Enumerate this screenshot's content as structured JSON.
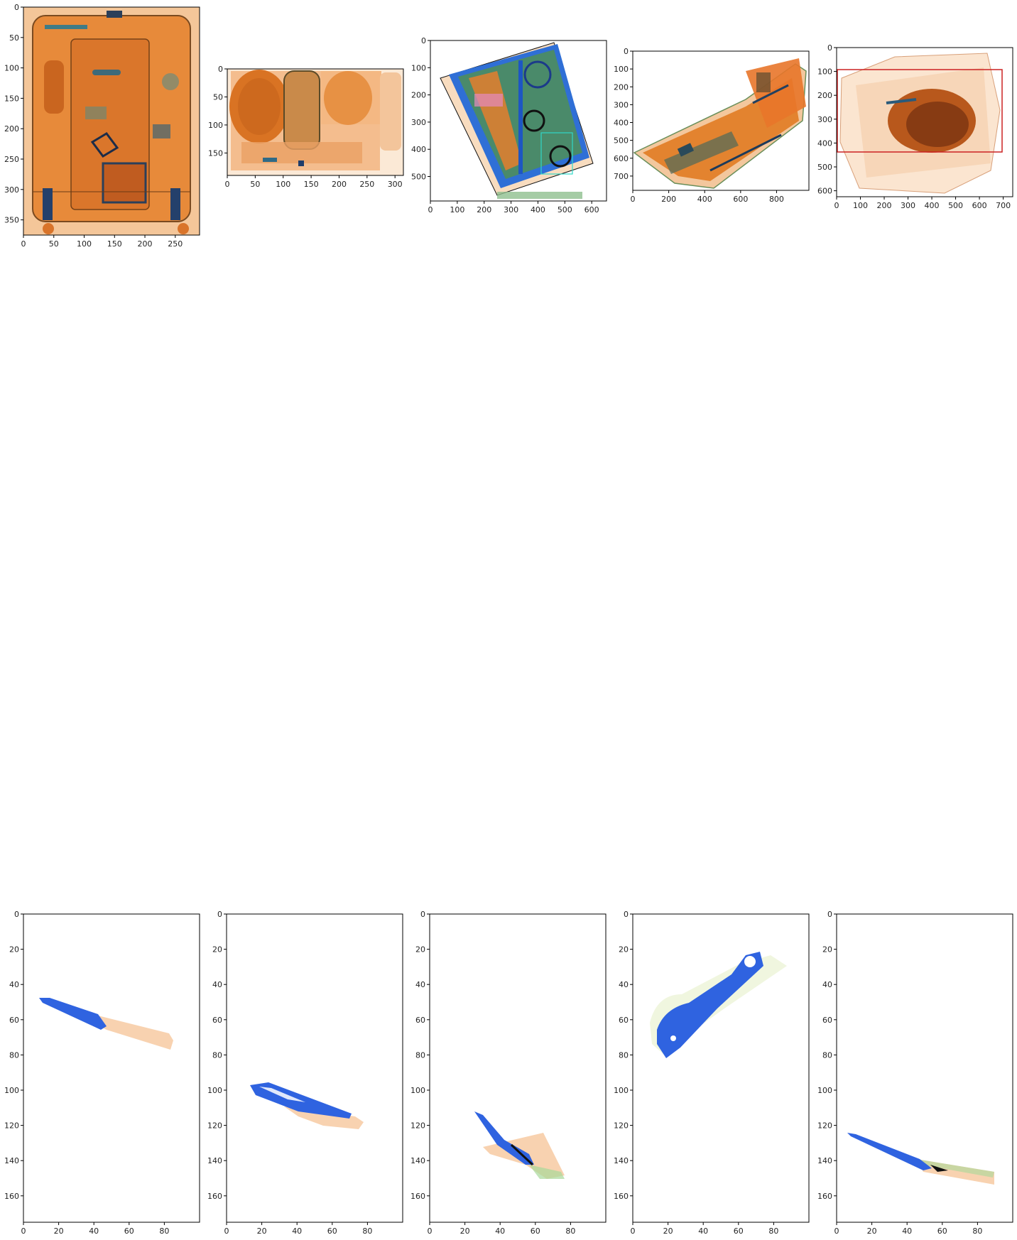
{
  "colors": {
    "bag_orange": "#e07a2a",
    "bag_light": "#f6c89a",
    "knife_blue": "#2f63e0",
    "handle_peach": "#f8d2b0",
    "highlight_red": "#cc2222",
    "highlight_cyan": "#30d8c8"
  },
  "panels": [
    {
      "name": "panel-1",
      "content": "xray-suitcase-upright",
      "xlim": [
        0,
        290
      ],
      "ylim": [
        375,
        0
      ],
      "xticks": [
        0,
        50,
        100,
        150,
        200,
        250
      ],
      "yticks": [
        0,
        50,
        100,
        150,
        200,
        250,
        300,
        350
      ]
    },
    {
      "name": "panel-2",
      "content": "xray-bag-with-rolls",
      "xlim": [
        0,
        315
      ],
      "ylim": [
        190,
        0
      ],
      "xticks": [
        0,
        50,
        100,
        150,
        200,
        250,
        300
      ],
      "yticks": [
        0,
        50,
        100,
        150
      ]
    },
    {
      "name": "panel-3",
      "content": "xray-tilted-case-blue-frame",
      "xlim": [
        0,
        655
      ],
      "ylim": [
        590,
        0
      ],
      "xticks": [
        0,
        100,
        200,
        300,
        400,
        500,
        600
      ],
      "yticks": [
        0,
        100,
        200,
        300,
        400,
        500
      ]
    },
    {
      "name": "panel-4",
      "content": "xray-diagonal-bag",
      "xlim": [
        0,
        980
      ],
      "ylim": [
        780,
        0
      ],
      "xticks": [
        0,
        200,
        400,
        600,
        800
      ],
      "yticks": [
        0,
        100,
        200,
        300,
        400,
        500,
        600,
        700
      ]
    },
    {
      "name": "panel-5",
      "content": "xray-box-dark-blob",
      "xlim": [
        0,
        740
      ],
      "ylim": [
        625,
        0
      ],
      "xticks": [
        0,
        100,
        200,
        300,
        400,
        500,
        600,
        700
      ],
      "yticks": [
        0,
        100,
        200,
        300,
        400,
        500,
        600
      ]
    },
    {
      "name": "panel-6",
      "content": "knife-crop-1",
      "xlim": [
        0,
        100
      ],
      "ylim": [
        175,
        0
      ],
      "xticks": [
        0,
        20,
        40,
        60,
        80
      ],
      "yticks": [
        0,
        20,
        40,
        60,
        80,
        100,
        120,
        140,
        160
      ]
    },
    {
      "name": "panel-7",
      "content": "knife-crop-2",
      "xlim": [
        0,
        100
      ],
      "ylim": [
        175,
        0
      ],
      "xticks": [
        0,
        20,
        40,
        60,
        80
      ],
      "yticks": [
        0,
        20,
        40,
        60,
        80,
        100,
        120,
        140,
        160
      ]
    },
    {
      "name": "panel-8",
      "content": "knife-crop-3",
      "xlim": [
        0,
        100
      ],
      "ylim": [
        175,
        0
      ],
      "xticks": [
        0,
        20,
        40,
        60,
        80
      ],
      "yticks": [
        0,
        20,
        40,
        60,
        80,
        100,
        120,
        140,
        160
      ]
    },
    {
      "name": "panel-9",
      "content": "cleaver-crop",
      "xlim": [
        0,
        100
      ],
      "ylim": [
        175,
        0
      ],
      "xticks": [
        0,
        20,
        40,
        60,
        80
      ],
      "yticks": [
        0,
        20,
        40,
        60,
        80,
        100,
        120,
        140,
        160
      ]
    },
    {
      "name": "panel-10",
      "content": "knife-crop-4",
      "xlim": [
        0,
        100
      ],
      "ylim": [
        175,
        0
      ],
      "xticks": [
        0,
        20,
        40,
        60,
        80
      ],
      "yticks": [
        0,
        20,
        40,
        60,
        80,
        100,
        120,
        140,
        160
      ]
    }
  ]
}
